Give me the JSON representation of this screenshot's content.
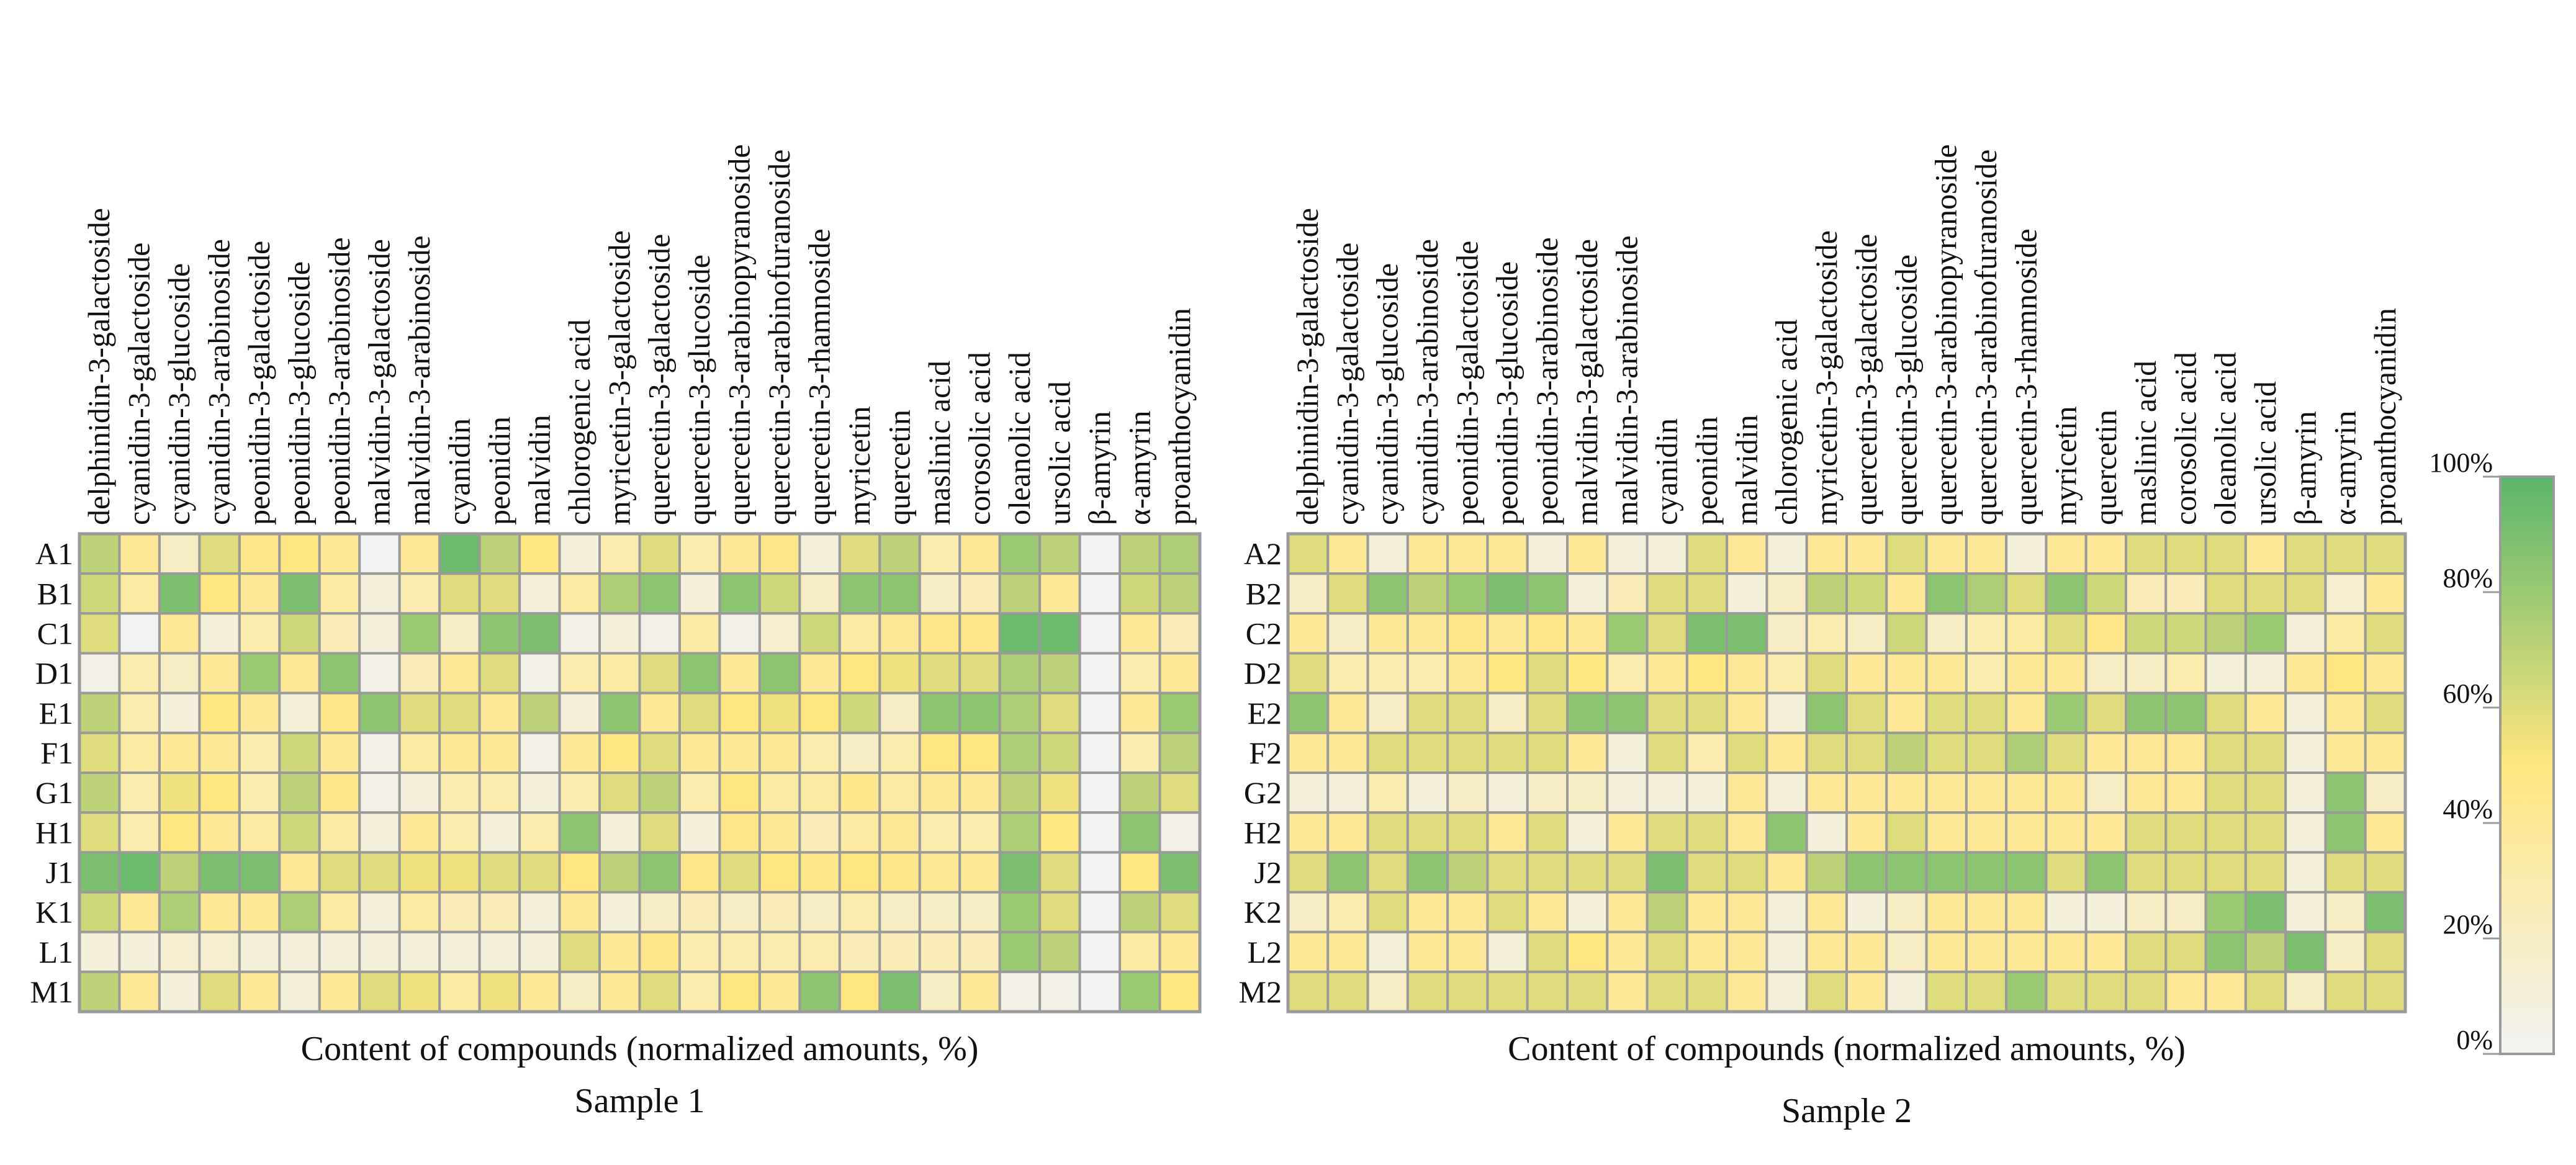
{
  "figure": {
    "xlabel": "Content of compounds (normalized amounts, %)",
    "colorbar": {
      "ticks": [
        "0%",
        "20%",
        "40%",
        "60%",
        "80%",
        "100%"
      ],
      "colors": {
        "low": "#f2f2f2",
        "mid": "#ffe680",
        "high": "#5ab56b"
      }
    }
  },
  "chart_data": [
    {
      "type": "heatmap",
      "title": "Sample 1",
      "xlabel": "Content of compounds (normalized amounts, %)",
      "vmin": 0,
      "vmax": 100,
      "columns": [
        "delphinidin-3-galactoside",
        "cyanidin-3-galactoside",
        "cyanidin-3-glucoside",
        "cyanidin-3-arabinoside",
        "peonidin-3-galactoside",
        "peonidin-3-glucoside",
        "peonidin-3-arabinoside",
        "malvidin-3-galactoside",
        "malvidin-3-arabinoside",
        "cyanidin",
        "peonidin",
        "malvidin",
        "chlorogenic acid",
        "myricetin-3-galactoside",
        "quercetin-3-galactoside",
        "quercetin-3-glucoside",
        "quercetin-3-arabinopyranoside",
        "quercetin-3-arabinofuranoside",
        "quercetin-3-rhamnoside",
        "myricetin",
        "quercetin",
        "maslinic acid",
        "corosolic acid",
        "oleanolic acid",
        "ursolic acid",
        "β-amyrin",
        "α-amyrin",
        "proanthocyanidin"
      ],
      "rows": [
        "A1",
        "B1",
        "C1",
        "D1",
        "E1",
        "F1",
        "G1",
        "H1",
        "J1",
        "K1",
        "L1",
        "M1"
      ],
      "values": [
        [
          70,
          40,
          20,
          60,
          45,
          50,
          40,
          0,
          40,
          95,
          70,
          50,
          10,
          30,
          60,
          30,
          40,
          45,
          10,
          60,
          70,
          30,
          40,
          80,
          70,
          0,
          70,
          75
        ],
        [
          65,
          35,
          90,
          50,
          40,
          90,
          35,
          10,
          30,
          60,
          60,
          10,
          35,
          75,
          85,
          10,
          85,
          65,
          20,
          85,
          85,
          20,
          25,
          70,
          40,
          0,
          65,
          70
        ],
        [
          60,
          0,
          40,
          10,
          30,
          65,
          25,
          10,
          80,
          20,
          85,
          90,
          5,
          10,
          5,
          35,
          5,
          15,
          65,
          35,
          40,
          45,
          45,
          95,
          95,
          0,
          40,
          25
        ],
        [
          5,
          30,
          20,
          40,
          80,
          40,
          85,
          5,
          25,
          40,
          60,
          5,
          30,
          35,
          60,
          85,
          40,
          85,
          40,
          50,
          55,
          60,
          60,
          75,
          70,
          0,
          30,
          40
        ],
        [
          70,
          30,
          10,
          50,
          40,
          10,
          45,
          85,
          60,
          60,
          40,
          70,
          10,
          85,
          40,
          60,
          50,
          55,
          50,
          65,
          20,
          85,
          85,
          75,
          60,
          0,
          40,
          80
        ],
        [
          60,
          35,
          40,
          40,
          30,
          65,
          40,
          5,
          35,
          40,
          40,
          5,
          40,
          50,
          60,
          40,
          40,
          40,
          30,
          20,
          30,
          50,
          50,
          75,
          65,
          0,
          30,
          70
        ],
        [
          70,
          30,
          55,
          50,
          30,
          70,
          45,
          5,
          10,
          30,
          30,
          10,
          30,
          60,
          70,
          30,
          50,
          35,
          35,
          45,
          35,
          40,
          40,
          70,
          55,
          0,
          70,
          60
        ],
        [
          60,
          30,
          50,
          40,
          35,
          65,
          35,
          10,
          40,
          30,
          10,
          30,
          85,
          10,
          60,
          10,
          45,
          40,
          25,
          35,
          40,
          30,
          30,
          75,
          50,
          0,
          85,
          5
        ],
        [
          90,
          95,
          70,
          90,
          90,
          40,
          60,
          60,
          55,
          55,
          60,
          60,
          50,
          70,
          85,
          45,
          60,
          50,
          45,
          50,
          45,
          40,
          40,
          90,
          60,
          0,
          50,
          90
        ],
        [
          65,
          40,
          75,
          40,
          40,
          75,
          35,
          10,
          35,
          25,
          25,
          10,
          40,
          10,
          20,
          25,
          20,
          25,
          20,
          30,
          20,
          20,
          20,
          80,
          60,
          0,
          70,
          60
        ],
        [
          10,
          10,
          15,
          15,
          10,
          10,
          10,
          10,
          10,
          10,
          10,
          10,
          60,
          40,
          45,
          30,
          30,
          30,
          30,
          25,
          25,
          25,
          25,
          80,
          70,
          0,
          35,
          40
        ],
        [
          70,
          40,
          10,
          60,
          40,
          10,
          40,
          60,
          55,
          35,
          55,
          40,
          20,
          40,
          60,
          30,
          50,
          40,
          85,
          50,
          90,
          20,
          40,
          5,
          5,
          0,
          80,
          50
        ]
      ]
    },
    {
      "type": "heatmap",
      "title": "Sample 2",
      "xlabel": "Content of compounds (normalized amounts, %)",
      "vmin": 0,
      "vmax": 100,
      "columns": [
        "delphinidin-3-galactoside",
        "cyanidin-3-galactoside",
        "cyanidin-3-glucoside",
        "cyanidin-3-arabinoside",
        "peonidin-3-galactoside",
        "peonidin-3-glucoside",
        "peonidin-3-arabinoside",
        "malvidin-3-galactoside",
        "malvidin-3-arabinoside",
        "cyanidin",
        "peonidin",
        "malvidin",
        "chlorogenic acid",
        "myricetin-3-galactoside",
        "quercetin-3-galactoside",
        "quercetin-3-glucoside",
        "quercetin-3-arabinopyranoside",
        "quercetin-3-arabinofuranoside",
        "quercetin-3-rhamnoside",
        "myricetin",
        "quercetin",
        "maslinic acid",
        "corosolic acid",
        "oleanolic acid",
        "ursolic acid",
        "β-amyrin",
        "α-amyrin",
        "proanthocyanidin"
      ],
      "rows": [
        "A2",
        "B2",
        "C2",
        "D2",
        "E2",
        "F2",
        "G2",
        "H2",
        "J2",
        "K2",
        "L2",
        "M2"
      ],
      "values": [
        [
          60,
          40,
          10,
          40,
          40,
          40,
          10,
          40,
          10,
          10,
          60,
          40,
          10,
          40,
          40,
          60,
          40,
          40,
          10,
          40,
          40,
          60,
          60,
          60,
          40,
          60,
          60,
          60
        ],
        [
          20,
          60,
          85,
          70,
          80,
          90,
          85,
          10,
          25,
          60,
          60,
          10,
          20,
          70,
          65,
          40,
          85,
          75,
          60,
          85,
          65,
          25,
          25,
          60,
          60,
          60,
          15,
          40
        ],
        [
          40,
          20,
          40,
          40,
          45,
          40,
          45,
          40,
          80,
          60,
          90,
          90,
          20,
          30,
          20,
          65,
          20,
          30,
          35,
          60,
          45,
          65,
          65,
          70,
          80,
          10,
          35,
          60
        ],
        [
          60,
          30,
          30,
          30,
          40,
          50,
          60,
          50,
          30,
          40,
          50,
          40,
          30,
          60,
          40,
          40,
          40,
          30,
          40,
          40,
          20,
          20,
          30,
          10,
          10,
          40,
          50,
          40
        ],
        [
          85,
          40,
          20,
          60,
          60,
          20,
          60,
          85,
          85,
          60,
          60,
          40,
          10,
          85,
          60,
          40,
          60,
          60,
          40,
          80,
          60,
          85,
          85,
          60,
          40,
          10,
          40,
          60
        ],
        [
          40,
          40,
          60,
          60,
          60,
          60,
          60,
          40,
          10,
          60,
          30,
          60,
          40,
          60,
          60,
          70,
          60,
          60,
          75,
          60,
          40,
          40,
          40,
          60,
          60,
          10,
          40,
          40
        ],
        [
          10,
          10,
          30,
          10,
          20,
          10,
          20,
          20,
          10,
          10,
          10,
          40,
          10,
          40,
          40,
          40,
          40,
          40,
          40,
          40,
          20,
          40,
          40,
          60,
          60,
          10,
          85,
          20
        ],
        [
          40,
          40,
          60,
          60,
          60,
          40,
          60,
          10,
          40,
          60,
          60,
          40,
          85,
          10,
          40,
          60,
          40,
          40,
          40,
          40,
          40,
          60,
          60,
          60,
          60,
          10,
          85,
          40
        ],
        [
          60,
          85,
          60,
          85,
          70,
          60,
          60,
          60,
          60,
          90,
          60,
          60,
          40,
          70,
          85,
          85,
          85,
          85,
          85,
          60,
          85,
          60,
          60,
          60,
          60,
          10,
          60,
          60
        ],
        [
          20,
          30,
          60,
          40,
          40,
          60,
          40,
          10,
          40,
          70,
          40,
          40,
          10,
          40,
          10,
          20,
          40,
          40,
          40,
          10,
          10,
          20,
          20,
          80,
          90,
          10,
          20,
          90
        ],
        [
          40,
          40,
          10,
          40,
          40,
          10,
          60,
          50,
          40,
          60,
          40,
          40,
          10,
          40,
          40,
          20,
          40,
          40,
          40,
          40,
          40,
          60,
          60,
          85,
          70,
          90,
          20,
          60
        ],
        [
          60,
          60,
          20,
          60,
          60,
          60,
          60,
          60,
          40,
          60,
          60,
          40,
          10,
          60,
          40,
          10,
          60,
          60,
          80,
          60,
          60,
          60,
          40,
          40,
          60,
          20,
          60,
          60
        ]
      ]
    }
  ]
}
